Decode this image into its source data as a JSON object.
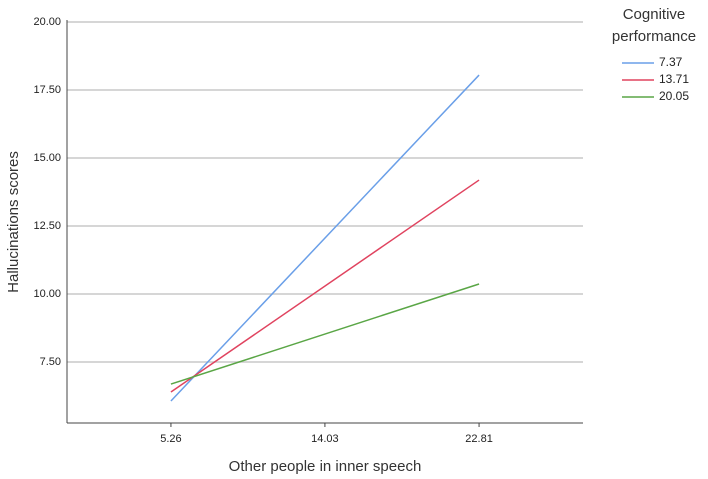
{
  "chart_data": {
    "type": "line",
    "x_label": "Other people in inner speech",
    "y_label": "Hallucinations  scores",
    "legend_title": "Cognitive performance",
    "x": [
      5.26,
      22.81
    ],
    "xlim": [
      -0.66,
      28.73
    ],
    "xticks": [
      5.26,
      14.03,
      22.81
    ],
    "ylim": [
      5.26,
      20
    ],
    "yticks": [
      {
        "value": 7.5,
        "label": "7.50"
      },
      {
        "value": 10,
        "label": "10.00"
      },
      {
        "value": 12.5,
        "label": "12.50"
      },
      {
        "value": 15,
        "label": "15.00"
      },
      {
        "value": 17.5,
        "label": "17.50"
      },
      {
        "value": 20,
        "label": "20.00"
      }
    ],
    "grid": true,
    "series": [
      {
        "name": "7.37",
        "color": "#6a9fe8",
        "values": [
          6.07,
          18.05
        ]
      },
      {
        "name": "13.71",
        "color": "#e0435f",
        "values": [
          6.4,
          14.19
        ]
      },
      {
        "name": "20.05",
        "color": "#5aa646",
        "values": [
          6.69,
          10.37
        ]
      }
    ]
  }
}
